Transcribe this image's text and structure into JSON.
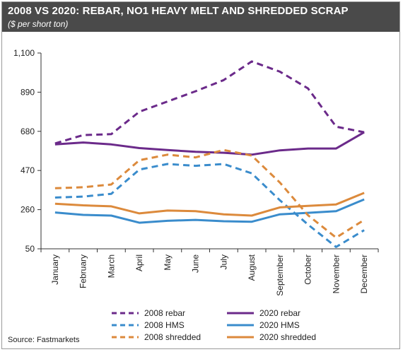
{
  "chart_data": {
    "type": "line",
    "title": "2008 VS 2020: REBAR, NO1 HEAVY MELT AND SHREDDED SCRAP",
    "subtitle": "($ per short ton)",
    "source": "Source: Fastmarkets",
    "categories": [
      "January",
      "February",
      "March",
      "April",
      "May",
      "June",
      "July",
      "August",
      "September",
      "October",
      "November",
      "December"
    ],
    "yticks": [
      "1,100",
      "890",
      "680",
      "470",
      "260",
      "50"
    ],
    "ylim": [
      50,
      1100
    ],
    "grid": false,
    "legend_position": "bottom",
    "series": [
      {
        "name": "2008 rebar",
        "color": "#6b2a8a",
        "dash": true,
        "values": [
          615,
          660,
          665,
          785,
          840,
          895,
          955,
          1055,
          1000,
          910,
          705,
          675
        ]
      },
      {
        "name": "2020 rebar",
        "color": "#6b2a8a",
        "dash": false,
        "values": [
          610,
          620,
          610,
          590,
          580,
          570,
          565,
          555,
          578,
          588,
          588,
          675
        ]
      },
      {
        "name": "2008 HMS",
        "color": "#3a8ccc",
        "dash": true,
        "values": [
          325,
          330,
          345,
          475,
          505,
          495,
          505,
          455,
          310,
          180,
          60,
          150
        ]
      },
      {
        "name": "2020 HMS",
        "color": "#3a8ccc",
        "dash": false,
        "values": [
          245,
          232,
          228,
          190,
          200,
          205,
          198,
          195,
          235,
          243,
          252,
          315
        ]
      },
      {
        "name": "2008 shredded",
        "color": "#dc8a3c",
        "dash": true,
        "values": [
          375,
          380,
          395,
          525,
          555,
          540,
          580,
          550,
          405,
          230,
          110,
          205
        ]
      },
      {
        "name": "2020 shredded",
        "color": "#dc8a3c",
        "dash": false,
        "values": [
          292,
          283,
          278,
          240,
          255,
          252,
          235,
          228,
          272,
          280,
          288,
          350
        ]
      }
    ]
  }
}
